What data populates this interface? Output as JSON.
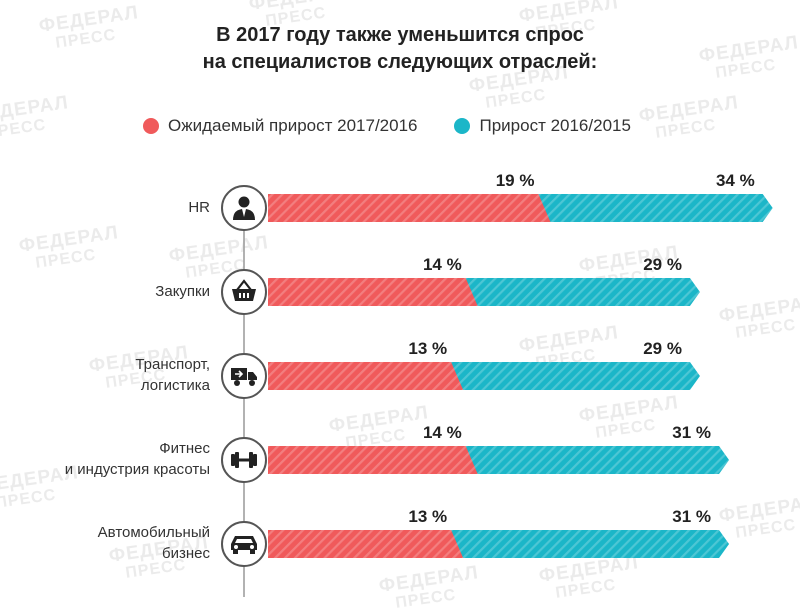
{
  "chart_data": {
    "type": "bar",
    "title": "В 2017 году также уменьшится спрос на специалистов следующих отраслей:",
    "title_lines": [
      "В 2017 году также уменьшится спрос",
      "на специалистов следующих отраслей:"
    ],
    "categories": [
      "HR",
      "Закупки",
      "Транспорт, логистика",
      "Фитнес и индустрия красоты",
      "Автомобильный бизнес"
    ],
    "category_lines": [
      [
        "HR"
      ],
      [
        "Закупки"
      ],
      [
        "Транспорт,",
        "логистика"
      ],
      [
        "Фитнес",
        "и индустрия красоты"
      ],
      [
        "Автомобильный",
        "бизнес"
      ]
    ],
    "category_icons": [
      "person-icon",
      "basket-icon",
      "truck-icon",
      "dumbbell-icon",
      "car-icon"
    ],
    "series": [
      {
        "name": "Ожидаемый прирост 2017/2016",
        "values": [
          19,
          14,
          13,
          14,
          13
        ],
        "color": "#f05a5b"
      },
      {
        "name": "Прирост 2016/2015",
        "values": [
          34,
          29,
          29,
          31,
          31
        ],
        "color": "#1bb6c8"
      }
    ],
    "value_suffix": " %",
    "legend_position": "top",
    "grid": false
  },
  "watermark": {
    "line1": "ФЕДЕРАЛ",
    "line2": "ПРЕСС"
  },
  "colors": {
    "icon": "#222222",
    "axis_line": "#999999"
  }
}
